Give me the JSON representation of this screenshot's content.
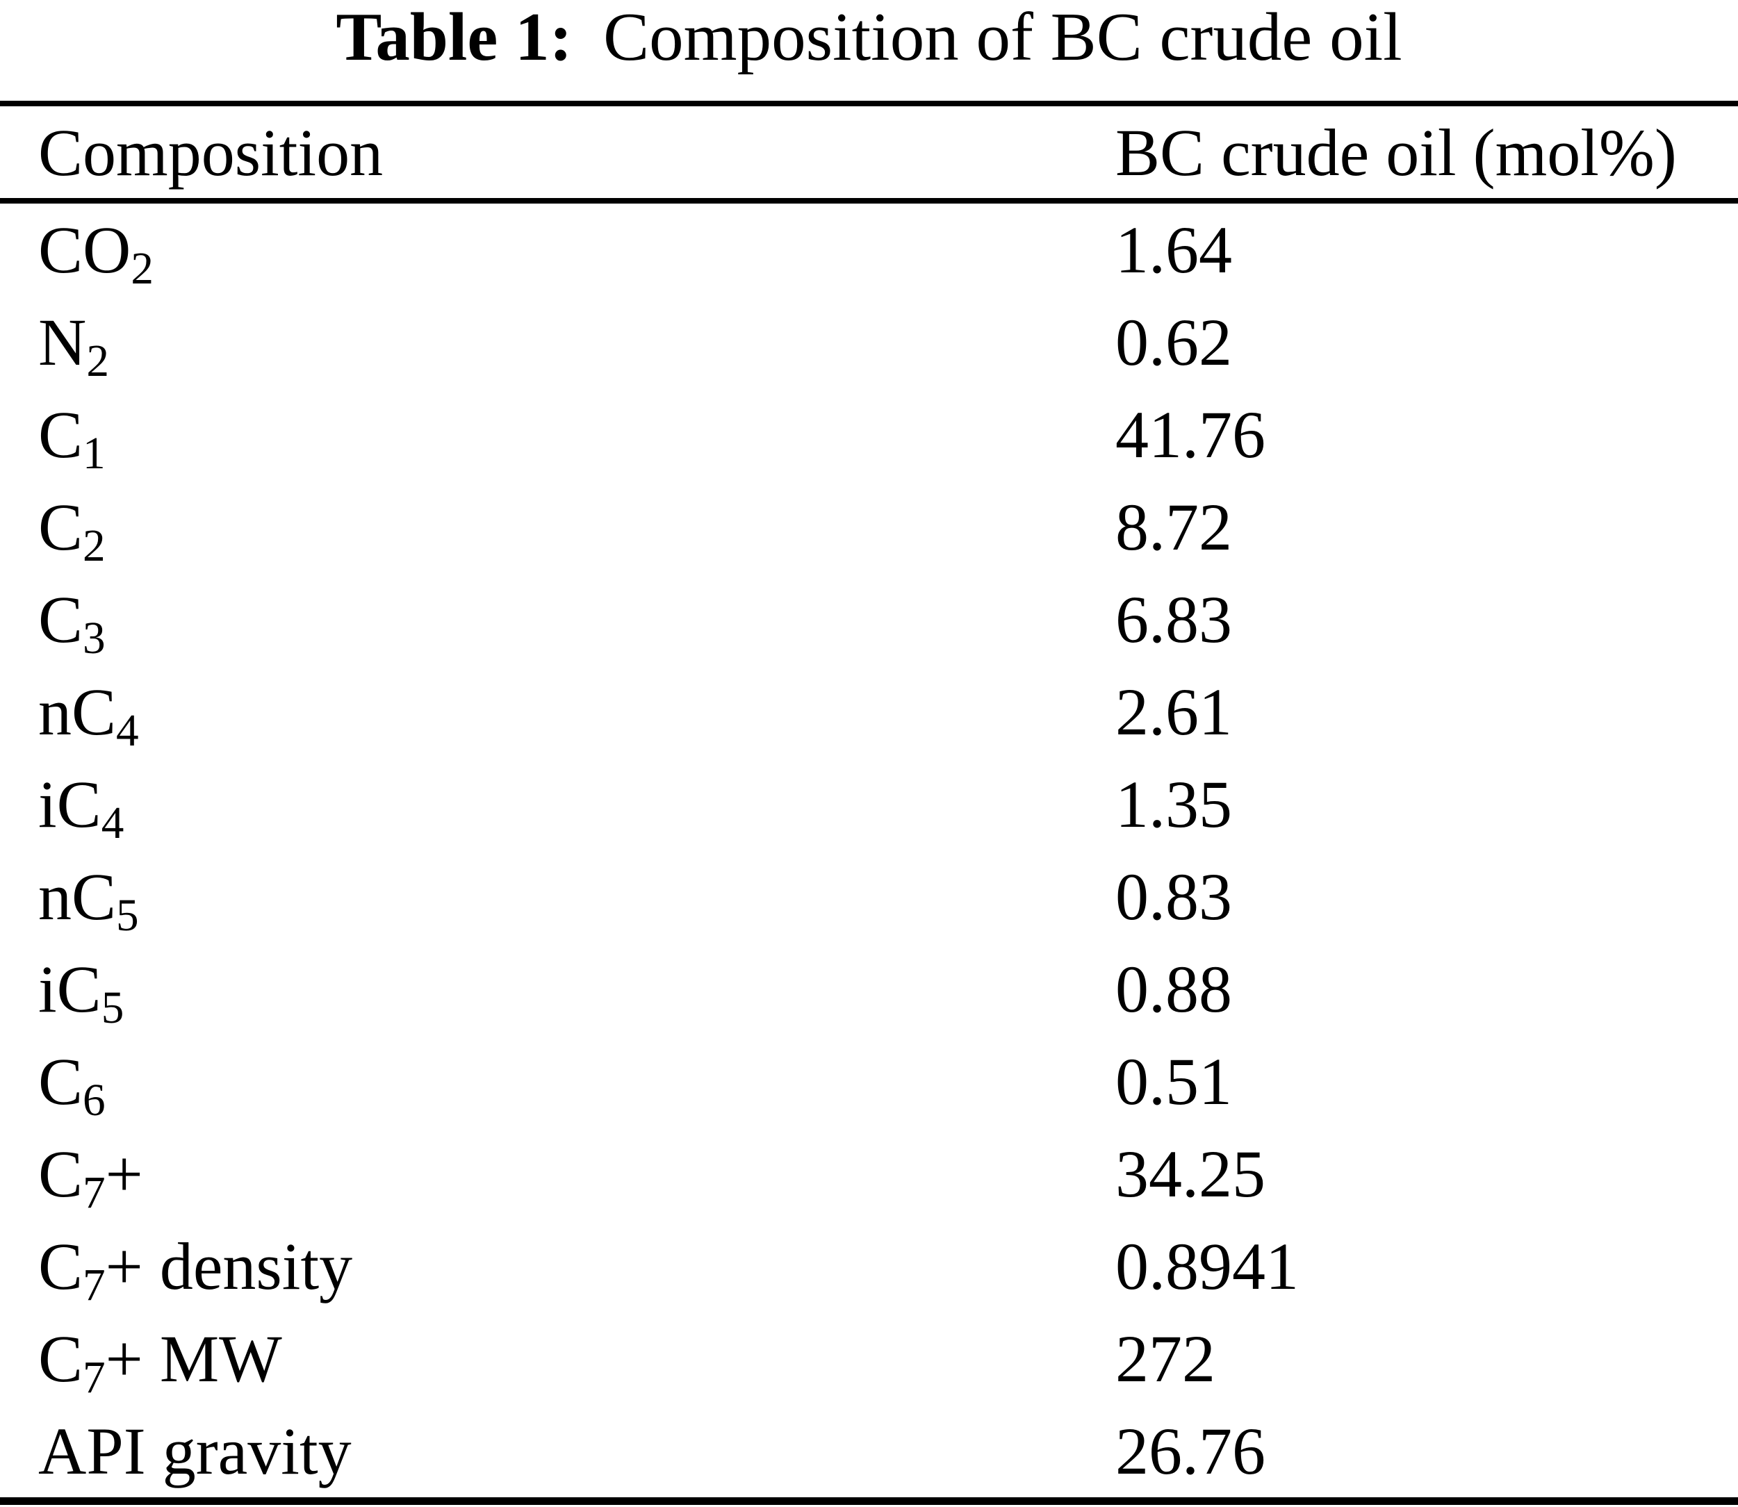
{
  "title": {
    "label": "Table 1:",
    "text": "Composition of BC crude oil"
  },
  "table": {
    "headers": [
      "Composition",
      "BC crude oil (mol%)"
    ],
    "rows": [
      {
        "label": "CO_2",
        "value": "1.64"
      },
      {
        "label": "N_2",
        "value": "0.62"
      },
      {
        "label": "C_1",
        "value": "41.76"
      },
      {
        "label": "C_2",
        "value": "8.72"
      },
      {
        "label": "C_3",
        "value": "6.83"
      },
      {
        "label": "nC_4",
        "value": "2.61"
      },
      {
        "label": "iC_4",
        "value": "1.35"
      },
      {
        "label": "nC_5",
        "value": "0.83"
      },
      {
        "label": "iC_5",
        "value": "0.88"
      },
      {
        "label": "C_6",
        "value": "0.51"
      },
      {
        "label": "C_7+",
        "value": "34.25"
      },
      {
        "label": "C_7+ density",
        "value": "0.8941"
      },
      {
        "label": "C_7+ MW",
        "value": "272"
      },
      {
        "label": "API gravity",
        "value": "26.76"
      }
    ]
  }
}
